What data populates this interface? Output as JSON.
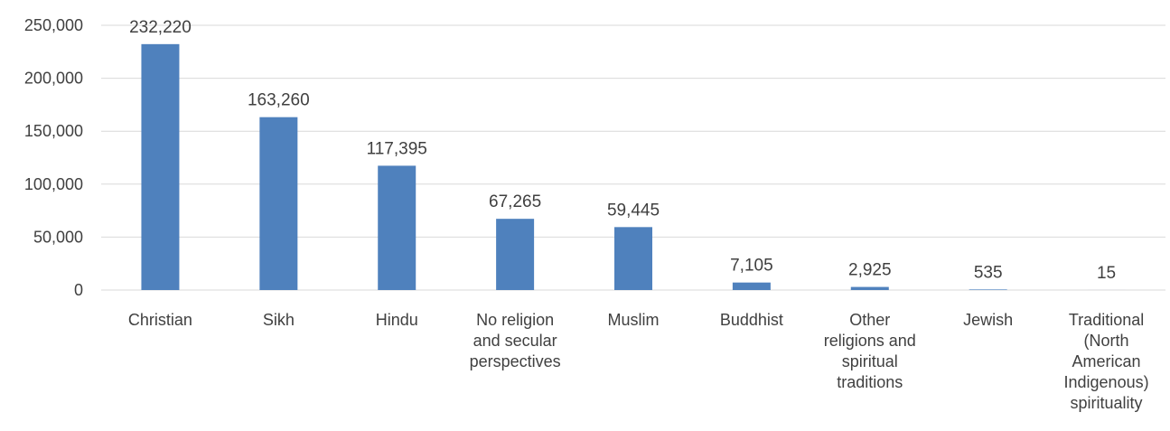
{
  "chart_data": {
    "type": "bar",
    "categories": [
      [
        "Christian"
      ],
      [
        "Sikh"
      ],
      [
        "Hindu"
      ],
      [
        "No religion",
        "and secular",
        "perspectives"
      ],
      [
        "Muslim"
      ],
      [
        "Buddhist"
      ],
      [
        "Other",
        "religions and",
        "spiritual",
        "traditions"
      ],
      [
        "Jewish"
      ],
      [
        "Traditional",
        "(North",
        "American",
        "Indigenous)",
        "spirituality"
      ]
    ],
    "values": [
      232220,
      163260,
      117395,
      67265,
      59445,
      7105,
      2925,
      535,
      15
    ],
    "data_labels": [
      "232,220",
      "163,260",
      "117,395",
      "67,265",
      "59,445",
      "7,105",
      "2,925",
      "535",
      "15"
    ],
    "yticks": [
      0,
      50000,
      100000,
      150000,
      200000,
      250000
    ],
    "ytick_labels": [
      "0",
      "50,000",
      "100,000",
      "150,000",
      "200,000",
      "250,000"
    ],
    "ylim": [
      0,
      250000
    ],
    "grid": true,
    "colors": {
      "bar": "#4f81bd",
      "grid": "#d9d9d9",
      "text": "#404040"
    }
  }
}
